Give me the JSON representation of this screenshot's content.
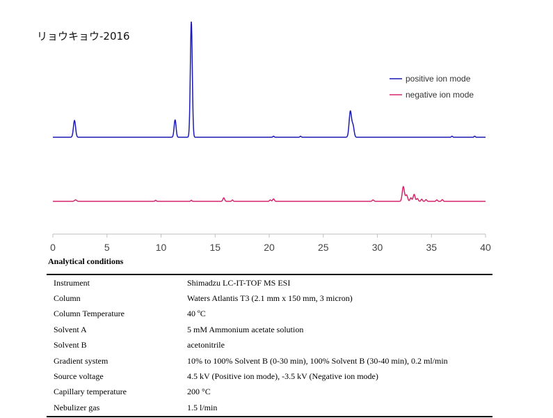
{
  "chart_data": {
    "type": "line",
    "title": "リョウキョウ-2016",
    "xlim": [
      0,
      40
    ],
    "x_ticks": [
      "0",
      "5",
      "10",
      "15",
      "20",
      "25",
      "30",
      "35",
      "40"
    ],
    "legend_position": "top-right",
    "grid": false,
    "series": [
      {
        "name": "positive ion mode",
        "color": "#1a1ab4",
        "peaks": [
          {
            "x": 2.0,
            "height": 24,
            "width": 0.1
          },
          {
            "x": 11.3,
            "height": 25,
            "width": 0.09
          },
          {
            "x": 12.8,
            "height": 166,
            "width": 0.09
          },
          {
            "x": 20.4,
            "height": 1.5,
            "width": 0.06
          },
          {
            "x": 22.9,
            "height": 1.5,
            "width": 0.06
          },
          {
            "x": 27.5,
            "height": 37,
            "width": 0.11
          },
          {
            "x": 27.75,
            "height": 16,
            "width": 0.1
          },
          {
            "x": 36.9,
            "height": 1.5,
            "width": 0.06
          },
          {
            "x": 39.0,
            "height": 1.5,
            "width": 0.06
          }
        ]
      },
      {
        "name": "negative ion mode",
        "color": "#d4246c",
        "peaks": [
          {
            "x": 2.1,
            "height": 2,
            "width": 0.1
          },
          {
            "x": 9.5,
            "height": 1.5,
            "width": 0.06
          },
          {
            "x": 12.8,
            "height": 1.5,
            "width": 0.06
          },
          {
            "x": 15.8,
            "height": 5,
            "width": 0.08
          },
          {
            "x": 16.6,
            "height": 2,
            "width": 0.06
          },
          {
            "x": 20.1,
            "height": 2,
            "width": 0.07
          },
          {
            "x": 20.4,
            "height": 3.5,
            "width": 0.08
          },
          {
            "x": 29.6,
            "height": 2,
            "width": 0.08
          },
          {
            "x": 32.4,
            "height": 21,
            "width": 0.1
          },
          {
            "x": 32.7,
            "height": 9,
            "width": 0.1
          },
          {
            "x": 33.1,
            "height": 5,
            "width": 0.08
          },
          {
            "x": 33.4,
            "height": 10,
            "width": 0.09
          },
          {
            "x": 33.7,
            "height": 4,
            "width": 0.08
          },
          {
            "x": 34.1,
            "height": 3,
            "width": 0.07
          },
          {
            "x": 34.5,
            "height": 2.5,
            "width": 0.07
          },
          {
            "x": 35.5,
            "height": 2,
            "width": 0.07
          },
          {
            "x": 36.0,
            "height": 2.5,
            "width": 0.07
          }
        ]
      }
    ]
  },
  "conditions": {
    "heading": "Analytical conditions",
    "rows": [
      {
        "param": "Instrument",
        "value": "Shimadzu LC-IT-TOF MS ESI"
      },
      {
        "param": "Column",
        "value": "Waters Atlantis T3 (2.1 mm x 150 mm, 3 micron)"
      },
      {
        "param": "Column Temperature",
        "value": "40 ºC"
      },
      {
        "param": "Solvent A",
        "value": "5 mM Ammonium acetate solution"
      },
      {
        "param": "Solvent B",
        "value": "acetonitrile"
      },
      {
        "param": "Gradient system",
        "value": "10% to 100% Solvent B (0-30 min), 100% Solvent B (30-40 min), 0.2 ml/min"
      },
      {
        "param": "Source voltage",
        "value": "4.5 kV (Positive ion mode), -3.5 kV (Negative ion mode)"
      },
      {
        "param": "Capillary temperature",
        "value": "200 °C"
      },
      {
        "param": "Nebulizer gas",
        "value": "1.5 l/min"
      }
    ]
  }
}
